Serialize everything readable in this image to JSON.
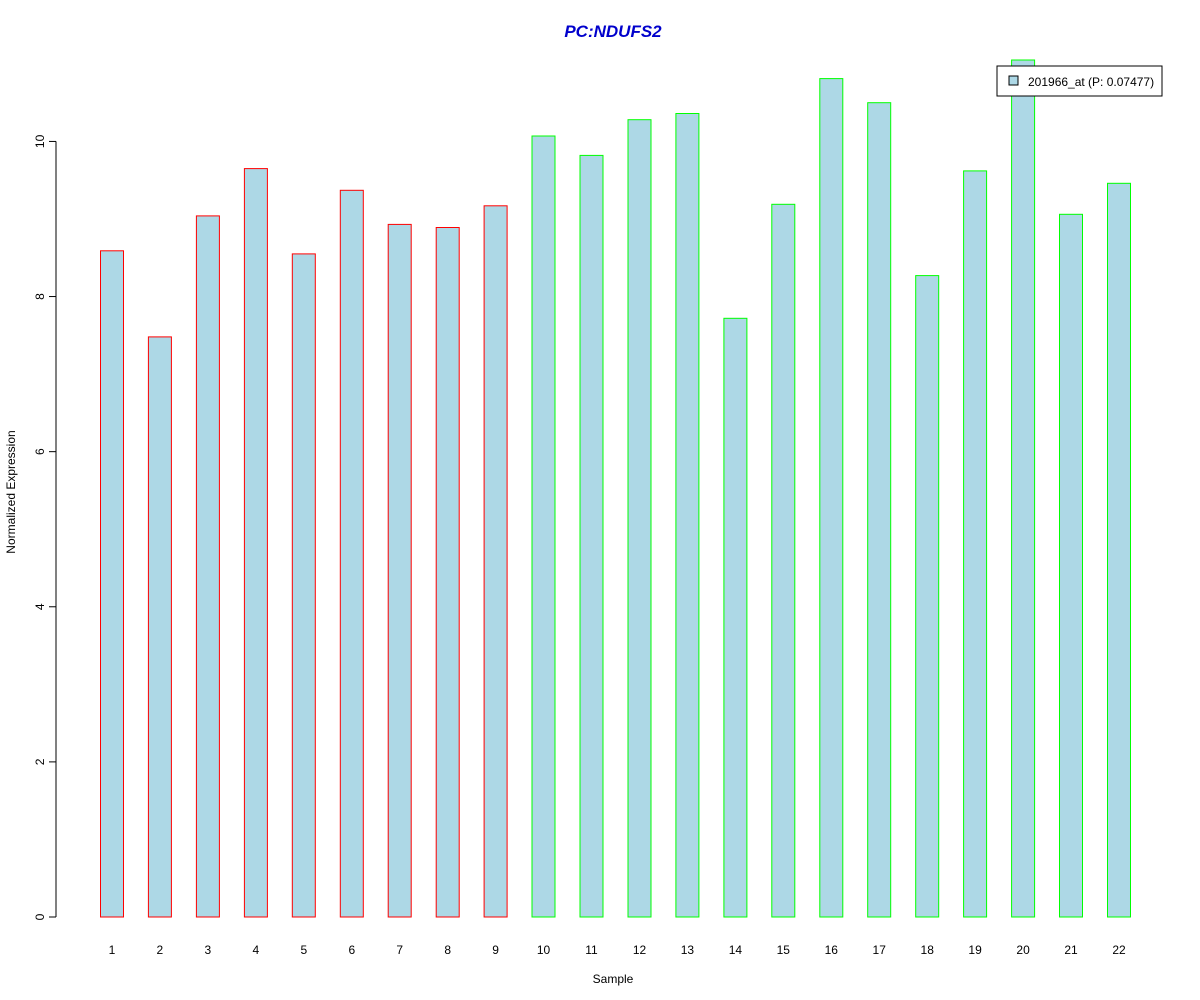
{
  "chart_data": {
    "type": "bar",
    "title": "PC:NDUFS2",
    "xlabel": "Sample",
    "ylabel": "Normalized Expression",
    "categories": [
      "1",
      "2",
      "3",
      "4",
      "5",
      "6",
      "7",
      "8",
      "9",
      "10",
      "11",
      "12",
      "13",
      "14",
      "15",
      "16",
      "17",
      "18",
      "19",
      "20",
      "21",
      "22"
    ],
    "values": [
      8.59,
      7.48,
      9.04,
      9.65,
      8.55,
      9.37,
      8.93,
      8.89,
      9.17,
      10.07,
      9.82,
      10.28,
      10.36,
      7.72,
      9.19,
      10.81,
      10.5,
      8.27,
      9.62,
      11.05,
      9.06,
      9.46
    ],
    "group": [
      "red",
      "red",
      "red",
      "red",
      "red",
      "red",
      "red",
      "red",
      "red",
      "green",
      "green",
      "green",
      "green",
      "green",
      "green",
      "green",
      "green",
      "green",
      "green",
      "green",
      "green",
      "green"
    ],
    "ylim": [
      0,
      11.05
    ],
    "yticks": [
      "0",
      "2",
      "4",
      "6",
      "8",
      "10"
    ],
    "legend": {
      "label": "201966_at (P: 0.07477)",
      "position": "top-right"
    },
    "grid": false,
    "colors": {
      "bar_fill": "#add8e6",
      "red_border": "#ff0000",
      "green_border": "#00ff00",
      "title": "#0000cc",
      "axis": "#000000"
    }
  }
}
